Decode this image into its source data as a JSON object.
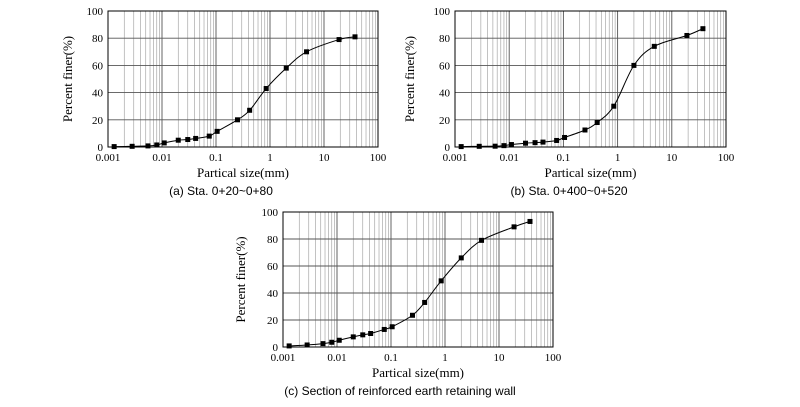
{
  "chart_data": [
    {
      "type": "scatter",
      "caption": "(a) Sta. 0+20~0+80",
      "xlabel": "Partical size(mm)",
      "ylabel": "Percent finer(%)",
      "xscale": "log",
      "xlim": [
        0.001,
        100
      ],
      "ylim": [
        0,
        100
      ],
      "xticks": [
        "0.001",
        "0.01",
        "0.1",
        "1",
        "10",
        "100"
      ],
      "yticks": [
        "0",
        "20",
        "40",
        "60",
        "80",
        "100"
      ],
      "grid": true,
      "marker": "square",
      "connected": "smooth",
      "points": [
        {
          "x": 0.0013,
          "y": 0.3
        },
        {
          "x": 0.0028,
          "y": 0.5
        },
        {
          "x": 0.0055,
          "y": 0.8
        },
        {
          "x": 0.008,
          "y": 1.5
        },
        {
          "x": 0.011,
          "y": 3.0
        },
        {
          "x": 0.02,
          "y": 5.0
        },
        {
          "x": 0.03,
          "y": 5.5
        },
        {
          "x": 0.042,
          "y": 6.3
        },
        {
          "x": 0.075,
          "y": 8.0
        },
        {
          "x": 0.105,
          "y": 11.5
        },
        {
          "x": 0.25,
          "y": 20.0
        },
        {
          "x": 0.42,
          "y": 27.0
        },
        {
          "x": 0.85,
          "y": 43.0
        },
        {
          "x": 2.0,
          "y": 58.0
        },
        {
          "x": 4.75,
          "y": 70.0
        },
        {
          "x": 19,
          "y": 79.0
        },
        {
          "x": 37.5,
          "y": 81.0
        }
      ]
    },
    {
      "type": "scatter",
      "caption": "(b) Sta. 0+400~0+520",
      "xlabel": "Partical size(mm)",
      "ylabel": "Percent finer(%)",
      "xscale": "log",
      "xlim": [
        0.001,
        100
      ],
      "ylim": [
        0,
        100
      ],
      "xticks": [
        "0.001",
        "0.01",
        "0.1",
        "1",
        "10",
        "100"
      ],
      "yticks": [
        "0",
        "20",
        "40",
        "60",
        "80",
        "100"
      ],
      "grid": true,
      "marker": "square",
      "connected": "smooth",
      "points": [
        {
          "x": 0.0013,
          "y": 0.3
        },
        {
          "x": 0.0028,
          "y": 0.5
        },
        {
          "x": 0.0055,
          "y": 0.6
        },
        {
          "x": 0.008,
          "y": 1.0
        },
        {
          "x": 0.011,
          "y": 1.8
        },
        {
          "x": 0.02,
          "y": 2.8
        },
        {
          "x": 0.03,
          "y": 3.2
        },
        {
          "x": 0.042,
          "y": 3.6
        },
        {
          "x": 0.075,
          "y": 4.8
        },
        {
          "x": 0.105,
          "y": 7.0
        },
        {
          "x": 0.25,
          "y": 12.5
        },
        {
          "x": 0.42,
          "y": 18.0
        },
        {
          "x": 0.85,
          "y": 30.0
        },
        {
          "x": 2.0,
          "y": 60.0
        },
        {
          "x": 4.75,
          "y": 74.0
        },
        {
          "x": 19,
          "y": 82.0
        },
        {
          "x": 37.5,
          "y": 87.0
        }
      ]
    },
    {
      "type": "scatter",
      "caption": "(c) Section of reinforced earth retaining wall",
      "xlabel": "Partical size(mm)",
      "ylabel": "Percent finer(%)",
      "xscale": "log",
      "xlim": [
        0.001,
        100
      ],
      "ylim": [
        0,
        100
      ],
      "xticks": [
        "0.001",
        "0.01",
        "0.1",
        "1",
        "10",
        "100"
      ],
      "yticks": [
        "0",
        "20",
        "40",
        "60",
        "80",
        "100"
      ],
      "grid": true,
      "marker": "square",
      "connected": "smooth",
      "points": [
        {
          "x": 0.0013,
          "y": 0.8
        },
        {
          "x": 0.0028,
          "y": 1.5
        },
        {
          "x": 0.0055,
          "y": 2.5
        },
        {
          "x": 0.008,
          "y": 3.5
        },
        {
          "x": 0.011,
          "y": 5.0
        },
        {
          "x": 0.02,
          "y": 7.5
        },
        {
          "x": 0.03,
          "y": 9.0
        },
        {
          "x": 0.042,
          "y": 10.0
        },
        {
          "x": 0.075,
          "y": 13.0
        },
        {
          "x": 0.105,
          "y": 15.0
        },
        {
          "x": 0.25,
          "y": 23.5
        },
        {
          "x": 0.42,
          "y": 33.0
        },
        {
          "x": 0.85,
          "y": 49.0
        },
        {
          "x": 2.0,
          "y": 66.0
        },
        {
          "x": 4.75,
          "y": 79.0
        },
        {
          "x": 19,
          "y": 89.0
        },
        {
          "x": 37.5,
          "y": 93.0
        }
      ]
    }
  ]
}
